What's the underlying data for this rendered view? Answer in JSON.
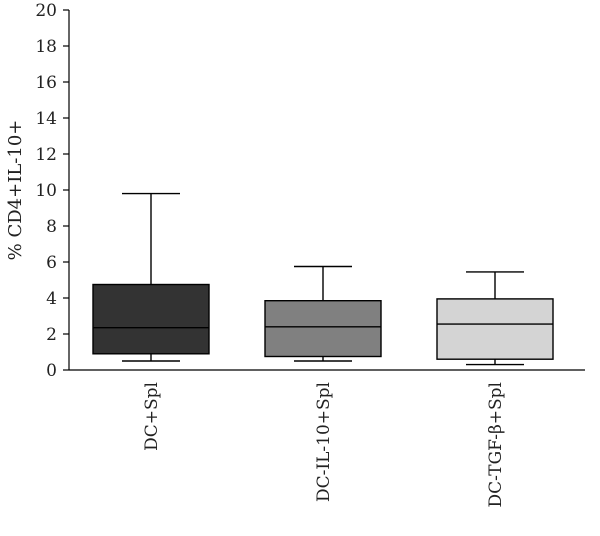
{
  "chart_data": {
    "type": "box",
    "title": "",
    "xlabel": "",
    "ylabel": "% CD4+IL-10+",
    "ylim": [
      0,
      20
    ],
    "yticks": [
      0,
      2,
      4,
      6,
      8,
      10,
      12,
      14,
      16,
      18,
      20
    ],
    "grid": false,
    "categories": [
      "DC+Spl",
      "DC-IL-10+Spl",
      "DC-TGF-β+Spl"
    ],
    "boxes": [
      {
        "min": 0.5,
        "q1": 0.9,
        "median": 2.35,
        "q3": 4.75,
        "max": 9.8,
        "color": "#333333"
      },
      {
        "min": 0.5,
        "q1": 0.75,
        "median": 2.4,
        "q3": 3.85,
        "max": 5.75,
        "color": "#808080"
      },
      {
        "min": 0.3,
        "q1": 0.6,
        "median": 2.55,
        "q3": 3.95,
        "max": 5.45,
        "color": "#d4d4d4"
      }
    ]
  }
}
